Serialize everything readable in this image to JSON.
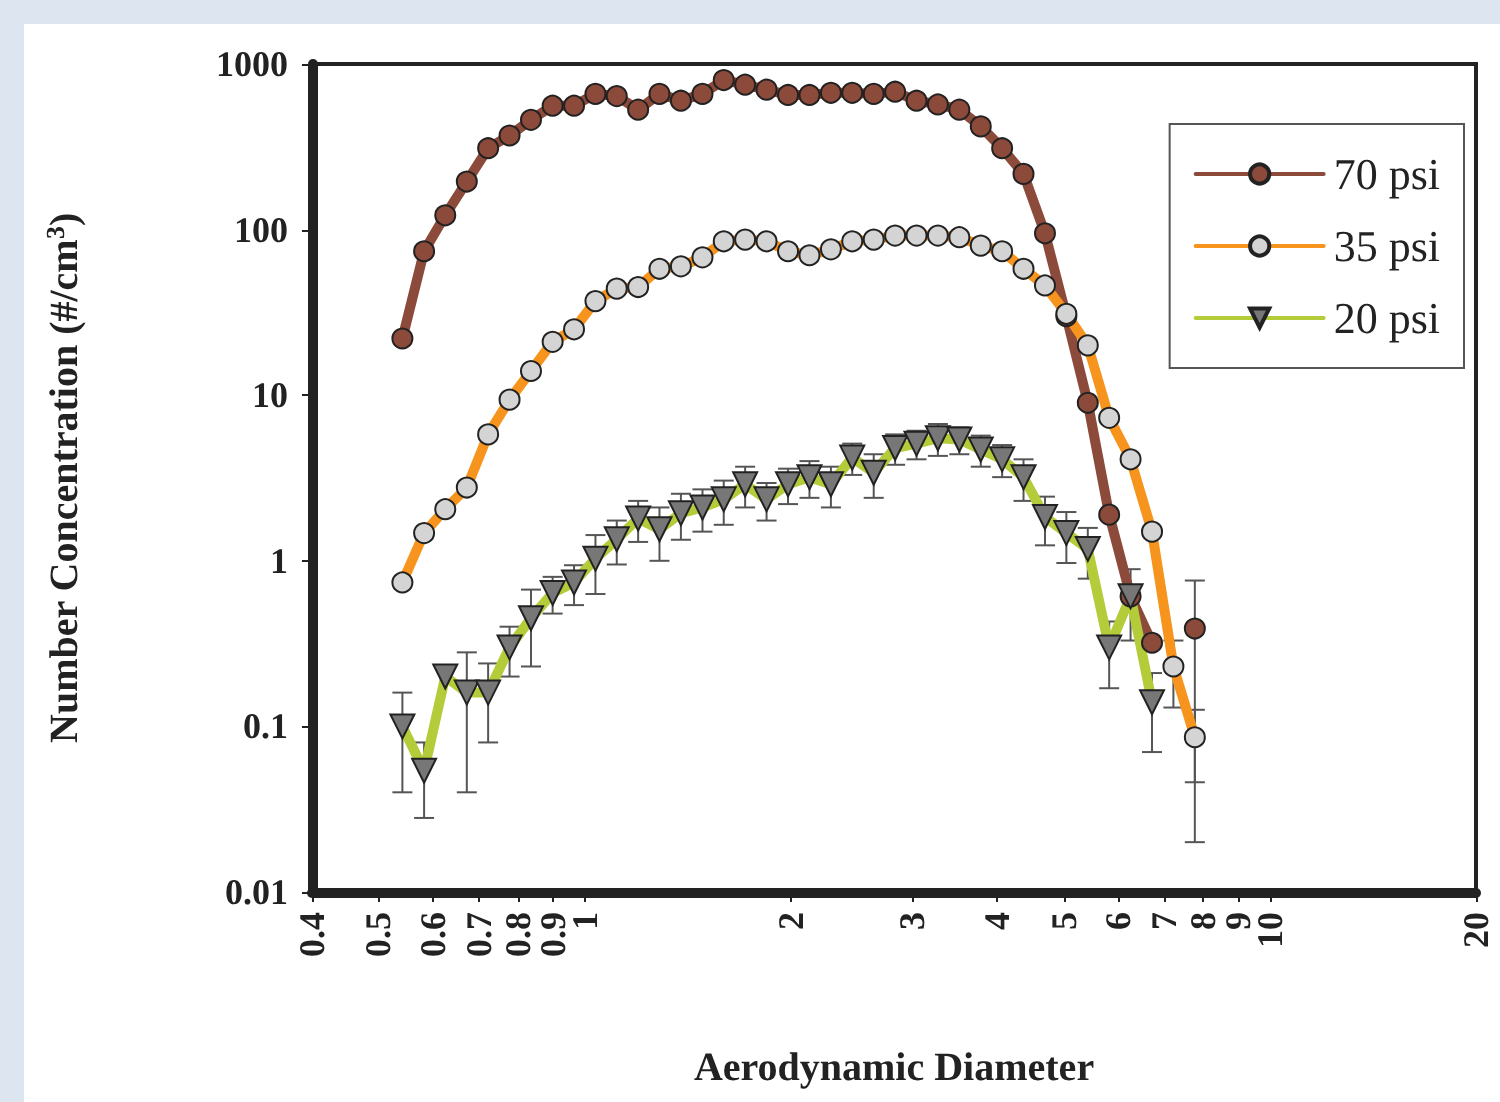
{
  "chart_data": {
    "type": "line",
    "xlabel": "Aerodynamic Diameter",
    "ylabel": "Number Concentration (#/cm$^{3}$)",
    "x": [
      0.542,
      0.583,
      0.626,
      0.673,
      0.723,
      0.777,
      0.835,
      0.898,
      0.965,
      1.037,
      1.114,
      1.197,
      1.286,
      1.382,
      1.486,
      1.596,
      1.715,
      1.843,
      1.981,
      2.129,
      2.288,
      2.458,
      2.642,
      2.839,
      3.051,
      3.278,
      3.523,
      3.786,
      4.068,
      4.371,
      4.698,
      5.048,
      5.425,
      5.829,
      6.264,
      6.732,
      7.234,
      7.774
    ],
    "series": [
      {
        "name": "70 psi",
        "color": "#8c4a3a",
        "marker": "circle",
        "values": [
          22,
          74,
          122,
          195,
          310,
          370,
          460,
          560,
          560,
          660,
          640,
          530,
          660,
          600,
          660,
          800,
          750,
          700,
          650,
          650,
          670,
          670,
          660,
          680,
          600,
          570,
          530,
          420,
          310,
          217,
          95,
          30,
          9,
          1.9,
          0.61,
          0.32,
          null,
          0.39
        ],
        "errors": [
          null,
          null,
          null,
          null,
          null,
          null,
          null,
          null,
          null,
          null,
          null,
          null,
          null,
          null,
          null,
          null,
          null,
          null,
          null,
          null,
          null,
          null,
          null,
          null,
          null,
          null,
          null,
          null,
          null,
          null,
          null,
          null,
          null,
          null,
          null,
          null,
          null,
          0.37
        ]
      },
      {
        "name": "35 psi",
        "color": "#f7941d",
        "marker": "circle",
        "values": [
          0.74,
          1.47,
          2.05,
          2.77,
          5.8,
          9.4,
          14,
          21,
          25,
          37,
          44,
          45,
          58,
          60,
          68,
          85,
          87,
          85,
          74,
          70,
          76,
          85,
          87,
          92,
          92,
          92,
          90,
          80,
          74,
          58,
          46,
          31,
          20,
          7.3,
          4.1,
          1.5,
          0.23,
          0.086
        ],
        "errors": [
          null,
          null,
          null,
          null,
          null,
          null,
          null,
          null,
          null,
          null,
          null,
          null,
          null,
          null,
          null,
          null,
          null,
          null,
          null,
          null,
          null,
          null,
          null,
          null,
          null,
          null,
          null,
          null,
          null,
          null,
          null,
          null,
          null,
          null,
          null,
          null,
          0.1,
          0.04
        ]
      },
      {
        "name": "20 psi",
        "color": "#b5cc3a",
        "marker": "triangle",
        "values": [
          0.1,
          0.054,
          0.2,
          0.16,
          0.16,
          0.3,
          0.45,
          0.64,
          0.74,
          1.03,
          1.35,
          1.8,
          1.55,
          1.94,
          2.1,
          2.35,
          2.9,
          2.35,
          2.9,
          3.2,
          2.9,
          4.2,
          3.4,
          4.8,
          5.1,
          5.5,
          5.4,
          4.7,
          4.1,
          3.2,
          1.84,
          1.47,
          1.18,
          0.3,
          0.61,
          0.14,
          null,
          null
        ],
        "errors": [
          0.06,
          0.026,
          null,
          0.12,
          0.08,
          0.1,
          0.22,
          0.16,
          0.2,
          0.4,
          0.4,
          0.5,
          0.55,
          0.6,
          0.6,
          0.7,
          0.8,
          0.6,
          0.7,
          0.8,
          0.8,
          0.9,
          1,
          1,
          1,
          1.2,
          1,
          1,
          0.9,
          0.9,
          0.6,
          0.5,
          0.4,
          0.13,
          0.28,
          0.07,
          null,
          null
        ]
      }
    ],
    "log": "xy",
    "xlim": [
      0.4,
      20
    ],
    "ylim": [
      0.01,
      1000
    ],
    "xticks": [
      0.4,
      0.5,
      0.6,
      0.7,
      0.8,
      0.9,
      1,
      2,
      3,
      4,
      5,
      6,
      7,
      8,
      9,
      10,
      20
    ],
    "yticks": [
      0.01,
      0.1,
      1,
      10,
      100,
      1000
    ],
    "grid": false,
    "legend": "top right",
    "line_style": "solid"
  }
}
